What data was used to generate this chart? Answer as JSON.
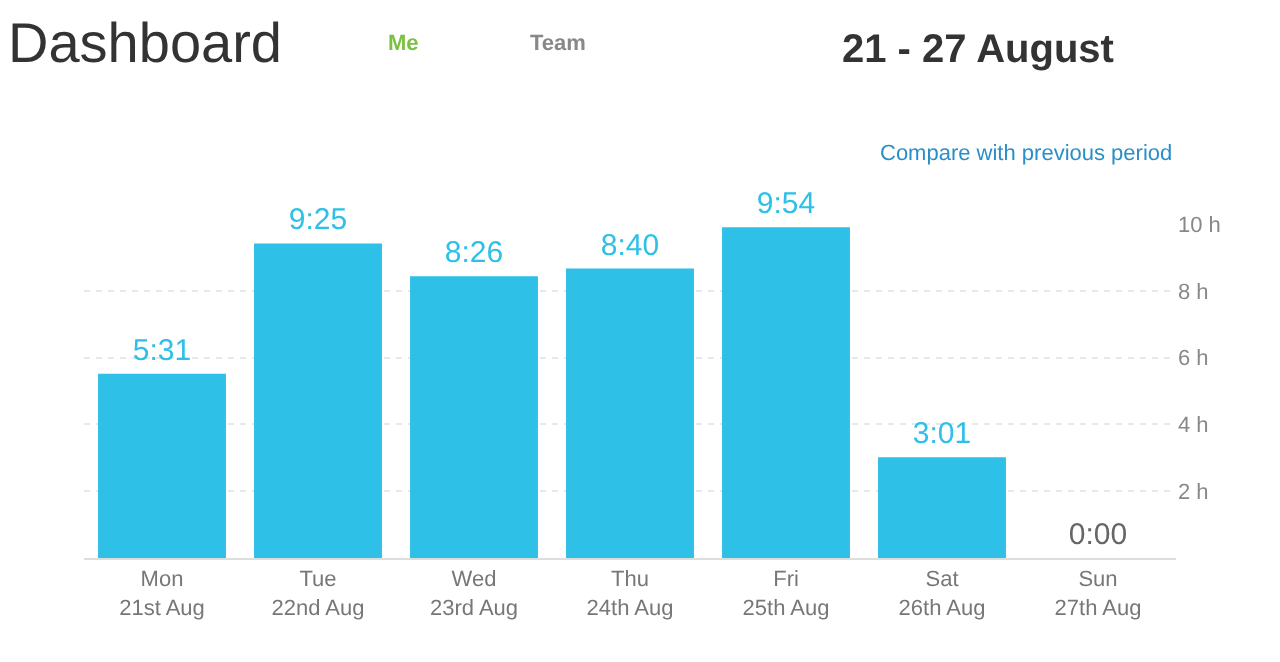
{
  "chart_data": {
    "type": "bar",
    "title": "Dashboard",
    "subtitle": "21 - 27 August",
    "annotations": [
      "Me",
      "Team",
      "Compare with previous period"
    ],
    "categories": [
      "Mon\n21st Aug",
      "Tue\n22nd Aug",
      "Wed\n23rd Aug",
      "Thu\n24th Aug",
      "Fri\n25th Aug",
      "Sat\n26th Aug",
      "Sun\n27th Aug"
    ],
    "values": [
      5.517,
      9.417,
      8.433,
      8.667,
      9.9,
      3.017,
      0
    ],
    "value_labels": [
      "5:31",
      "9:25",
      "8:26",
      "8:40",
      "9:54",
      "3:01",
      "0:00"
    ],
    "colors": [
      "#2ec0e6",
      "#2ec0e6",
      "#2ec0e6",
      "#2ec0e6",
      "#2ec0e6",
      "#2ec0e6",
      "#999999"
    ],
    "ylim": [
      0,
      10
    ],
    "yticks": [
      {
        "value": 2,
        "label": "2 h"
      },
      {
        "value": 4,
        "label": "4 h"
      },
      {
        "value": 6,
        "label": "6 h"
      },
      {
        "value": 8,
        "label": "8 h"
      },
      {
        "value": 10,
        "label": "10 h"
      }
    ],
    "grid": "y",
    "legend": false
  }
}
